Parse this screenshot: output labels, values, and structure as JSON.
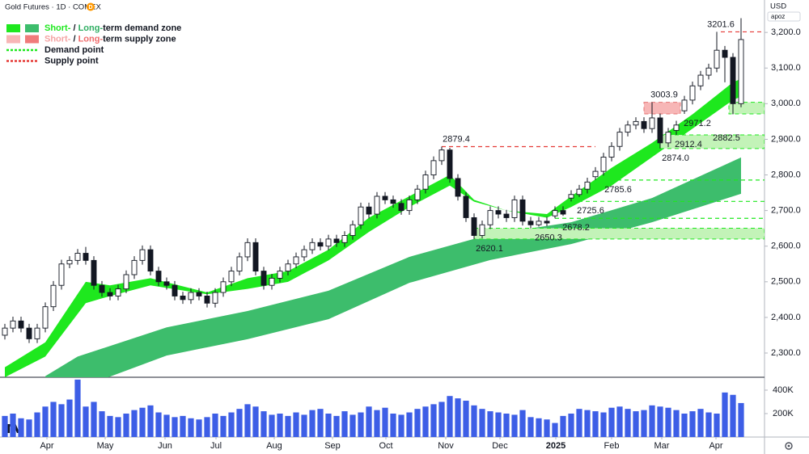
{
  "chart_data": {
    "type": "candlestick",
    "title": "Gold Futures · 1D · COMEX",
    "badge": "D",
    "currency": "USD",
    "scale_note": "apoz",
    "legend": [
      {
        "swatches": [
          "#1ee81e",
          "#3dbd6c"
        ],
        "parts": [
          {
            "text": "Short-",
            "color": "#1ee81e"
          },
          {
            "text": " / "
          },
          {
            "text": "Long-",
            "color": "#2fae62"
          },
          {
            "text": "term demand zone"
          }
        ]
      },
      {
        "swatches": [
          "#f7b6b6",
          "#f07b7b"
        ],
        "parts": [
          {
            "text": "Short-",
            "color": "#f5a3a3"
          },
          {
            "text": " / "
          },
          {
            "text": "Long-",
            "color": "#ef6b6b"
          },
          {
            "text": "term supply zone"
          }
        ]
      },
      {
        "line": "#1ee81e",
        "parts": [
          {
            "text": "Demand point"
          }
        ]
      },
      {
        "line": "#e53935",
        "parts": [
          {
            "text": "Supply point"
          }
        ]
      }
    ],
    "xlim": [
      -0.6,
      93.9
    ],
    "xticks": [
      {
        "value": 5.2,
        "label": "Apr"
      },
      {
        "value": 12.4,
        "label": "May"
      },
      {
        "value": 19.8,
        "label": "Jun"
      },
      {
        "value": 26.1,
        "label": "Jul"
      },
      {
        "value": 33.3,
        "label": "Aug"
      },
      {
        "value": 40.5,
        "label": "Sep"
      },
      {
        "value": 47.1,
        "label": "Oct"
      },
      {
        "value": 54.5,
        "label": "Nov"
      },
      {
        "value": 61.2,
        "label": "Dec"
      },
      {
        "value": 68.1,
        "label": "2025",
        "bold": true
      },
      {
        "value": 75,
        "label": "Feb"
      },
      {
        "value": 81.2,
        "label": "Mar"
      },
      {
        "value": 87.9,
        "label": "Apr"
      }
    ],
    "ylim": [
      2232,
      3291
    ],
    "yticks": [
      {
        "value": 2300,
        "label": "2,300.0"
      },
      {
        "value": 2400,
        "label": "2,400.0"
      },
      {
        "value": 2500,
        "label": "2,500.0"
      },
      {
        "value": 2600,
        "label": "2,600.0"
      },
      {
        "value": 2700,
        "label": "2,700.0"
      },
      {
        "value": 2800,
        "label": "2,800.0"
      },
      {
        "value": 2900,
        "label": "2,900.0"
      },
      {
        "value": 3000,
        "label": "3,000.0"
      },
      {
        "value": 3100,
        "label": "3,100.0"
      },
      {
        "value": 3200,
        "label": "3,200.0"
      }
    ],
    "grid": false,
    "up_color": "#ffffff",
    "down_color": "#131722",
    "edge_color": "#131722",
    "open": [
      2350,
      2370,
      2390,
      2370,
      2340,
      2370,
      2430,
      2490,
      2550,
      2560,
      2580,
      2560,
      2490,
      2470,
      2460,
      2480,
      2520,
      2560,
      2590,
      2530,
      2500,
      2490,
      2460,
      2450,
      2470,
      2460,
      2440,
      2470,
      2500,
      2530,
      2570,
      2610,
      2530,
      2490,
      2510,
      2530,
      2550,
      2570,
      2590,
      2610,
      2600,
      2620,
      2610,
      2630,
      2660,
      2710,
      2690,
      2740,
      2730,
      2720,
      2700,
      2730,
      2760,
      2800,
      2840,
      2870,
      2790,
      2740,
      2680,
      2630,
      2660,
      2700,
      2690,
      2680,
      2730,
      2670,
      2660,
      2670,
      2685,
      2700,
      2735,
      2745,
      2760,
      2795,
      2810,
      2850,
      2880,
      2920,
      2940,
      2950,
      2930,
      2960,
      2890,
      2925,
      2980,
      3010,
      3050,
      3080,
      3100,
      3150,
      3130,
      3000
    ],
    "high": [
      2382,
      2402,
      2402,
      2382,
      2382,
      2442,
      2502,
      2562,
      2572,
      2592,
      2598,
      2572,
      2502,
      2482,
      2492,
      2532,
      2572,
      2602,
      2602,
      2542,
      2512,
      2502,
      2472,
      2482,
      2482,
      2472,
      2482,
      2512,
      2542,
      2582,
      2622,
      2622,
      2542,
      2522,
      2542,
      2562,
      2582,
      2602,
      2622,
      2622,
      2632,
      2632,
      2642,
      2672,
      2722,
      2722,
      2752,
      2752,
      2742,
      2732,
      2742,
      2772,
      2812,
      2852,
      2879.4,
      2876,
      2802,
      2752,
      2692,
      2672,
      2712,
      2712,
      2702,
      2742,
      2742,
      2682,
      2682,
      2682,
      2712,
      2712,
      2757,
      2772,
      2792,
      2822,
      2862,
      2892,
      2932,
      2952,
      2962,
      2962,
      3003.9,
      2972,
      2932,
      2952,
      3022,
      3062,
      3092,
      3112,
      3201.6,
      3162,
      3142,
      3240
    ],
    "low": [
      2338,
      2358,
      2358,
      2328,
      2328,
      2358,
      2418,
      2478,
      2538,
      2548,
      2548,
      2478,
      2458,
      2448,
      2448,
      2468,
      2508,
      2548,
      2518,
      2488,
      2478,
      2448,
      2438,
      2438,
      2448,
      2428,
      2428,
      2458,
      2488,
      2518,
      2558,
      2518,
      2478,
      2478,
      2498,
      2518,
      2538,
      2558,
      2578,
      2588,
      2588,
      2598,
      2598,
      2618,
      2648,
      2678,
      2678,
      2718,
      2708,
      2688,
      2688,
      2718,
      2748,
      2788,
      2828,
      2778,
      2728,
      2668,
      2620.1,
      2622,
      2648,
      2678,
      2668,
      2668,
      2658,
      2650.3,
      2655,
      2656,
      2678.2,
      2685,
      2725.6,
      2738,
      2748,
      2785.6,
      2798,
      2838,
      2868,
      2908,
      2928,
      2918,
      2918,
      2874,
      2878,
      2912.4,
      2971.2,
      2998,
      3038,
      3068,
      3088,
      3060,
      2970,
      2990
    ],
    "close": [
      2370,
      2390,
      2370,
      2340,
      2370,
      2430,
      2490,
      2550,
      2560,
      2580,
      2560,
      2490,
      2470,
      2460,
      2480,
      2520,
      2560,
      2590,
      2530,
      2500,
      2490,
      2460,
      2450,
      2470,
      2460,
      2440,
      2470,
      2500,
      2530,
      2570,
      2610,
      2530,
      2490,
      2510,
      2530,
      2550,
      2570,
      2590,
      2610,
      2600,
      2620,
      2610,
      2630,
      2660,
      2710,
      2690,
      2740,
      2730,
      2720,
      2700,
      2730,
      2760,
      2800,
      2840,
      2870,
      2790,
      2740,
      2680,
      2630,
      2660,
      2700,
      2690,
      2680,
      2730,
      2670,
      2660,
      2670,
      2665,
      2700,
      2690,
      2745,
      2760,
      2780,
      2810,
      2850,
      2880,
      2920,
      2940,
      2950,
      2930,
      2960,
      2890,
      2920,
      2940,
      3010,
      3050,
      3080,
      3100,
      3150,
      3130,
      3000,
      3180
    ],
    "volume": {
      "color": "#3d5ee6",
      "values": [
        180000,
        200000,
        160000,
        150000,
        210000,
        260000,
        300000,
        280000,
        320000,
        490000,
        260000,
        300000,
        220000,
        180000,
        170000,
        200000,
        230000,
        250000,
        270000,
        210000,
        190000,
        170000,
        180000,
        160000,
        150000,
        170000,
        200000,
        180000,
        210000,
        240000,
        280000,
        260000,
        220000,
        190000,
        200000,
        180000,
        210000,
        190000,
        230000,
        240000,
        200000,
        180000,
        220000,
        190000,
        210000,
        260000,
        230000,
        250000,
        200000,
        190000,
        210000,
        240000,
        260000,
        280000,
        300000,
        350000,
        330000,
        310000,
        270000,
        240000,
        220000,
        210000,
        200000,
        190000,
        230000,
        170000,
        160000,
        150000,
        120000,
        180000,
        200000,
        240000,
        230000,
        220000,
        210000,
        250000,
        260000,
        240000,
        220000,
        230000,
        270000,
        260000,
        250000,
        230000,
        200000,
        220000,
        240000,
        210000,
        200000,
        380000,
        360000,
        290000
      ],
      "ylim": [
        0,
        510000
      ],
      "yticks": [
        {
          "value": 200000,
          "label": "200K"
        },
        {
          "value": 400000,
          "label": "400K"
        }
      ]
    },
    "bands": [
      {
        "color": "#3dbd6c",
        "x": [
          5,
          9,
          20,
          30,
          40,
          50,
          60,
          70,
          80,
          91
        ],
        "upper": [
          2235,
          2290,
          2372,
          2418,
          2475,
          2570,
          2633,
          2667,
          2735,
          2849
        ],
        "lower": [
          2180,
          2200,
          2293,
          2339,
          2395,
          2497,
          2561,
          2606,
          2667,
          2747
        ]
      },
      {
        "color": "#1ee81e",
        "x": [
          0,
          5,
          10,
          13,
          18,
          25,
          30,
          35,
          40,
          45,
          50,
          55,
          58,
          62,
          67,
          70,
          75,
          80,
          85,
          90,
          91
        ],
        "upper": [
          2260,
          2330,
          2500,
          2490,
          2510,
          2470,
          2510,
          2530,
          2590,
          2680,
          2740,
          2800,
          2730,
          2700,
          2690,
          2740,
          2820,
          2890,
          2970,
          3060,
          3070
        ],
        "lower": [
          2232,
          2290,
          2440,
          2460,
          2490,
          2465,
          2480,
          2500,
          2560,
          2640,
          2710,
          2770,
          2725,
          2700,
          2680,
          2710,
          2770,
          2850,
          2930,
          3010,
          3020
        ]
      }
    ],
    "zones": [
      {
        "low": 2620.1,
        "high": 2650.3,
        "from": 58,
        "color": "#c3f3b8",
        "edge": "#1ee81e"
      },
      {
        "low": 2874,
        "high": 2912.4,
        "from": 81,
        "color": "#c3f3b8",
        "edge": "#1ee81e"
      },
      {
        "low": 2971.2,
        "high": 3003.9,
        "from": 79,
        "to": 83.5,
        "color": "#f7b6b6",
        "edge": "#e57373"
      },
      {
        "low": 2971.2,
        "high": 3003.9,
        "from": 89.5,
        "color": "#c3f3b8",
        "edge": "#1ee81e"
      }
    ],
    "levels": [
      {
        "value": 3201.6,
        "from": 88.5,
        "color": "#e53935"
      },
      {
        "value": 2879.4,
        "from": 54,
        "to": 73,
        "color": "#e53935"
      },
      {
        "value": 2785.6,
        "from": 73,
        "color": "#1ee81e"
      },
      {
        "value": 2725.6,
        "from": 70,
        "color": "#1ee81e"
      },
      {
        "value": 2678.2,
        "from": 68,
        "color": "#1ee81e"
      }
    ],
    "annotations": [
      {
        "value": 3201.6,
        "label": "3201.6",
        "at": 88.5,
        "place": "above"
      },
      {
        "value": 3003.9,
        "label": "3003.9",
        "at": 81.5,
        "place": "above"
      },
      {
        "value": 2882.5,
        "label": "2882.5",
        "at": 89.2,
        "place": "above"
      },
      {
        "value": 2971.2,
        "label": "2971.2",
        "at": 85.6,
        "place": "below"
      },
      {
        "value": 2912.4,
        "label": "2912.4",
        "at": 84.5,
        "place": "below"
      },
      {
        "value": 2874,
        "label": "2874.0",
        "at": 82.9,
        "place": "below"
      },
      {
        "value": 2879.4,
        "label": "2879.4",
        "at": 55.8,
        "place": "above"
      },
      {
        "value": 2785.6,
        "label": "2785.6",
        "at": 75.8,
        "place": "below"
      },
      {
        "value": 2725.6,
        "label": "2725.6",
        "at": 72.4,
        "place": "below"
      },
      {
        "value": 2678.2,
        "label": "2678.2",
        "at": 70.6,
        "place": "below"
      },
      {
        "value": 2650.3,
        "label": "2650.3",
        "at": 67.2,
        "place": "below"
      },
      {
        "value": 2620.1,
        "label": "2620.1",
        "at": 59.9,
        "place": "below"
      }
    ]
  }
}
